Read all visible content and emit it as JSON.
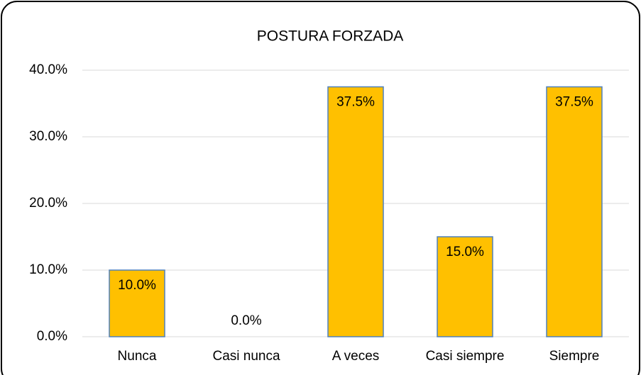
{
  "chart_data": {
    "type": "bar",
    "title": "POSTURA FORZADA",
    "categories": [
      "Nunca",
      "Casi nunca",
      "A veces",
      "Casi siempre",
      "Siempre"
    ],
    "values": [
      10,
      0,
      37.5,
      15,
      37.5
    ],
    "value_labels": [
      "10.0%",
      "0.0%",
      "37.5%",
      "15.0%",
      "37.5%"
    ],
    "color": "#ffc000",
    "ylim": [
      0,
      40
    ],
    "yticks": [
      {
        "value": 0,
        "label": "0.0%"
      },
      {
        "value": 10,
        "label": "10.0%"
      },
      {
        "value": 20,
        "label": "20.0%"
      },
      {
        "value": 30,
        "label": "30.0%"
      },
      {
        "value": 40,
        "label": "40.0%"
      }
    ],
    "grid": true
  }
}
